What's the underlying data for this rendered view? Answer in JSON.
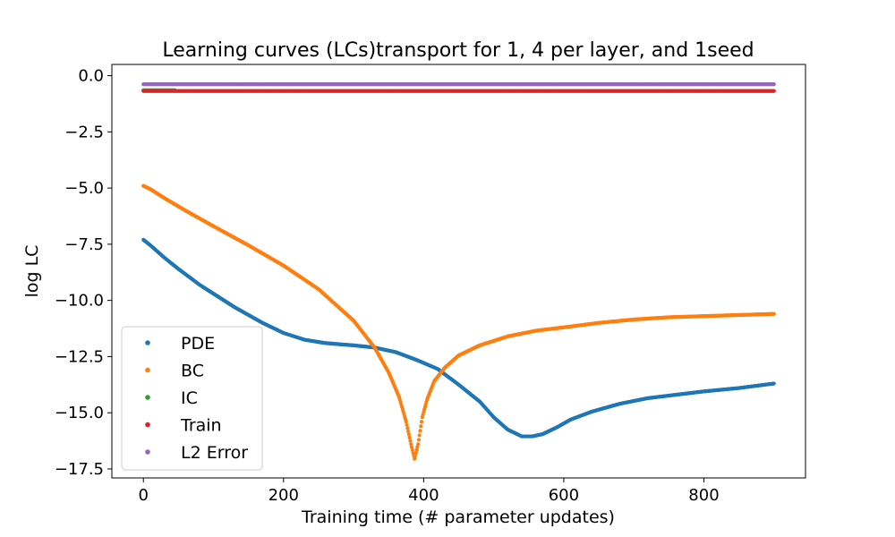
{
  "chart_data": {
    "type": "scatter",
    "title": "Learning curves (LCs)transport for 1, 4 per layer, and 1seed",
    "xlabel": "Training time (# parameter updates)",
    "ylabel": "log LC",
    "xlim": [
      -45,
      945
    ],
    "ylim": [
      -17.9,
      0.5
    ],
    "xticks": [
      0,
      200,
      400,
      600,
      800
    ],
    "xtick_labels": [
      "0",
      "200",
      "400",
      "600",
      "800"
    ],
    "yticks": [
      0.0,
      -2.5,
      -5.0,
      -7.5,
      -10.0,
      -12.5,
      -15.0,
      -17.5
    ],
    "ytick_labels": [
      "0.0",
      "−2.5",
      "−5.0",
      "−7.5",
      "−10.0",
      "−12.5",
      "−15.0",
      "−17.5"
    ],
    "grid": false,
    "legend_position": "lower-left",
    "series": [
      {
        "name": "PDE",
        "color": "#1f77b4",
        "points": [
          [
            0,
            -7.3
          ],
          [
            10,
            -7.55
          ],
          [
            30,
            -8.1
          ],
          [
            50,
            -8.6
          ],
          [
            80,
            -9.3
          ],
          [
            100,
            -9.7
          ],
          [
            130,
            -10.3
          ],
          [
            150,
            -10.65
          ],
          [
            170,
            -11.0
          ],
          [
            200,
            -11.45
          ],
          [
            230,
            -11.75
          ],
          [
            260,
            -11.9
          ],
          [
            300,
            -12.0
          ],
          [
            330,
            -12.1
          ],
          [
            360,
            -12.3
          ],
          [
            390,
            -12.65
          ],
          [
            420,
            -13.05
          ],
          [
            450,
            -13.75
          ],
          [
            480,
            -14.5
          ],
          [
            500,
            -15.2
          ],
          [
            520,
            -15.75
          ],
          [
            540,
            -16.05
          ],
          [
            555,
            -16.05
          ],
          [
            570,
            -15.95
          ],
          [
            590,
            -15.65
          ],
          [
            610,
            -15.3
          ],
          [
            640,
            -14.95
          ],
          [
            680,
            -14.6
          ],
          [
            720,
            -14.35
          ],
          [
            760,
            -14.2
          ],
          [
            800,
            -14.05
          ],
          [
            850,
            -13.9
          ],
          [
            900,
            -13.7
          ]
        ]
      },
      {
        "name": "BC",
        "color": "#ff7f0e",
        "points": [
          [
            0,
            -4.9
          ],
          [
            10,
            -5.05
          ],
          [
            30,
            -5.45
          ],
          [
            60,
            -6.0
          ],
          [
            100,
            -6.7
          ],
          [
            150,
            -7.55
          ],
          [
            200,
            -8.45
          ],
          [
            250,
            -9.5
          ],
          [
            300,
            -10.9
          ],
          [
            330,
            -12.1
          ],
          [
            350,
            -13.2
          ],
          [
            365,
            -14.3
          ],
          [
            375,
            -15.4
          ],
          [
            382,
            -16.4
          ],
          [
            387,
            -17.05
          ],
          [
            392,
            -16.4
          ],
          [
            398,
            -15.2
          ],
          [
            405,
            -14.4
          ],
          [
            415,
            -13.6
          ],
          [
            430,
            -13.0
          ],
          [
            450,
            -12.45
          ],
          [
            480,
            -12.0
          ],
          [
            520,
            -11.6
          ],
          [
            560,
            -11.35
          ],
          [
            600,
            -11.2
          ],
          [
            650,
            -11.0
          ],
          [
            700,
            -10.85
          ],
          [
            750,
            -10.75
          ],
          [
            800,
            -10.7
          ],
          [
            850,
            -10.65
          ],
          [
            900,
            -10.6
          ]
        ]
      },
      {
        "name": "IC",
        "color": "#2ca02c",
        "points": [
          [
            0,
            -0.65
          ],
          [
            20,
            -0.65
          ],
          [
            45,
            -0.65
          ]
        ]
      },
      {
        "name": "Train",
        "color": "#d62728",
        "points": [
          [
            0,
            -0.68
          ],
          [
            900,
            -0.68
          ]
        ]
      },
      {
        "name": "L2 Error",
        "color": "#9467bd",
        "points": [
          [
            0,
            -0.38
          ],
          [
            900,
            -0.38
          ]
        ]
      }
    ]
  }
}
